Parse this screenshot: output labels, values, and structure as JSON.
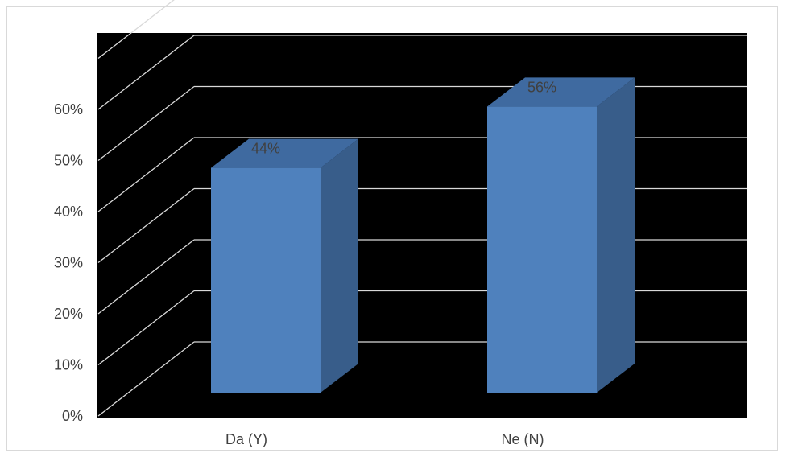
{
  "chart_data": {
    "type": "bar",
    "style": "3d-column",
    "categories": [
      "Da (Y)",
      "Ne (N)"
    ],
    "values": [
      44,
      56
    ],
    "data_labels": [
      "44%",
      "56%"
    ],
    "ylim": [
      0,
      70
    ],
    "yticks": [
      0,
      10,
      20,
      30,
      40,
      50,
      60
    ],
    "ytick_labels": [
      "0%",
      "10%",
      "20%",
      "30%",
      "40%",
      "50%",
      "60%"
    ],
    "grid": true,
    "legend": "none",
    "colors": {
      "plot_background": "#000000",
      "gridline": "#d9d9d9",
      "bar_front": "#4f81bd",
      "bar_side": "#385d8a",
      "bar_top": "#3f6aa0",
      "text": "#404040"
    }
  }
}
